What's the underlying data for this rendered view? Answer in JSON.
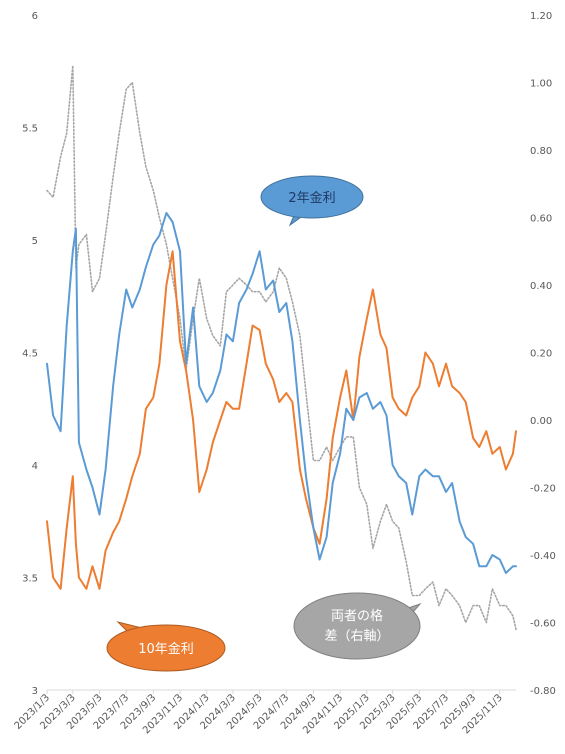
{
  "chart_data": {
    "type": "line",
    "title": "",
    "xlabel": "",
    "ylabel": "",
    "y_left": {
      "min": 3,
      "max": 6,
      "ticks": [
        "3",
        "3.5",
        "4",
        "4.5",
        "5",
        "5.5",
        "6"
      ]
    },
    "y_right": {
      "min": -0.8,
      "max": 1.2,
      "ticks": [
        "-0.80",
        "-0.60",
        "-0.40",
        "-0.20",
        "0.00",
        "0.20",
        "0.40",
        "0.60",
        "0.80",
        "1.00",
        "1.20"
      ]
    },
    "x_ticks": [
      "2023/1/3",
      "2023/3/3",
      "2023/5/3",
      "2023/7/3",
      "2023/9/3",
      "2023/11/3",
      "2024/1/3",
      "2024/3/3",
      "2024/5/3",
      "2024/7/3",
      "2024/9/3",
      "2024/11/3",
      "2025/1/3",
      "2025/3/3",
      "2025/5/3",
      "2025/7/3",
      "2025/9/3",
      "2025/11/3"
    ],
    "x_range": [
      "2023/1/3",
      "2025/12/10"
    ],
    "grid": false,
    "legend": "none",
    "annotations": [
      {
        "text": "2年金利",
        "color": "#5b9bd5",
        "text_color": "#1f3864"
      },
      {
        "text": "10年金利",
        "color": "#ed7d31",
        "text_color": "#ffffff"
      },
      {
        "text": "両者の格差（右軸）",
        "line1": "両者の格",
        "line2": "差（右軸）",
        "color": "#a6a6a6",
        "text_color": "#ffffff"
      }
    ],
    "series": [
      {
        "name": "2年金利",
        "axis": "left",
        "color": "#5b9bd5",
        "style": "solid",
        "x": [
          "2023/1/3",
          "2023/1/17",
          "2023/2/3",
          "2023/2/17",
          "2023/3/3",
          "2023/3/10",
          "2023/3/17",
          "2023/4/3",
          "2023/4/17",
          "2023/5/3",
          "2023/5/17",
          "2023/6/3",
          "2023/6/17",
          "2023/7/3",
          "2023/7/17",
          "2023/8/3",
          "2023/8/17",
          "2023/9/3",
          "2023/9/17",
          "2023/10/3",
          "2023/10/17",
          "2023/11/3",
          "2023/11/17",
          "2023/12/3",
          "2023/12/17",
          "2024/1/3",
          "2024/1/17",
          "2024/2/3",
          "2024/2/17",
          "2024/3/3",
          "2024/3/17",
          "2024/4/3",
          "2024/4/17",
          "2024/5/3",
          "2024/5/17",
          "2024/6/3",
          "2024/6/17",
          "2024/7/3",
          "2024/7/17",
          "2024/8/3",
          "2024/8/17",
          "2024/9/3",
          "2024/9/17",
          "2024/10/3",
          "2024/10/17",
          "2024/11/3",
          "2024/11/17",
          "2024/12/3",
          "2024/12/17",
          "2025/1/3",
          "2025/1/17",
          "2025/2/3",
          "2025/2/17",
          "2025/3/3",
          "2025/3/17",
          "2025/4/3",
          "2025/4/17",
          "2025/5/3",
          "2025/5/17",
          "2025/6/3",
          "2025/6/17",
          "2025/7/3",
          "2025/7/17",
          "2025/8/3",
          "2025/8/17",
          "2025/9/3",
          "2025/9/17",
          "2025/10/3",
          "2025/10/17",
          "2025/11/3",
          "2025/11/17",
          "2025/12/3",
          "2025/12/10"
        ],
        "values": [
          4.45,
          4.22,
          4.15,
          4.62,
          4.95,
          5.05,
          4.1,
          3.98,
          3.9,
          3.78,
          3.98,
          4.35,
          4.58,
          4.78,
          4.7,
          4.78,
          4.88,
          4.98,
          5.02,
          5.12,
          5.08,
          4.95,
          4.45,
          4.7,
          4.35,
          4.28,
          4.32,
          4.42,
          4.58,
          4.55,
          4.72,
          4.78,
          4.85,
          4.95,
          4.78,
          4.82,
          4.68,
          4.72,
          4.55,
          4.2,
          3.95,
          3.72,
          3.58,
          3.68,
          3.92,
          4.05,
          4.25,
          4.2,
          4.3,
          4.32,
          4.25,
          4.28,
          4.22,
          4.0,
          3.95,
          3.92,
          3.78,
          3.95,
          3.98,
          3.95,
          3.95,
          3.88,
          3.92,
          3.75,
          3.68,
          3.65,
          3.55,
          3.55,
          3.6,
          3.58,
          3.52,
          3.55,
          3.55
        ]
      },
      {
        "name": "10年金利",
        "axis": "left",
        "color": "#ed7d31",
        "style": "solid",
        "x": [
          "2023/1/3",
          "2023/1/17",
          "2023/2/3",
          "2023/2/17",
          "2023/3/3",
          "2023/3/10",
          "2023/3/17",
          "2023/4/3",
          "2023/4/17",
          "2023/5/3",
          "2023/5/17",
          "2023/6/3",
          "2023/6/17",
          "2023/7/3",
          "2023/7/17",
          "2023/8/3",
          "2023/8/17",
          "2023/9/3",
          "2023/9/17",
          "2023/10/3",
          "2023/10/17",
          "2023/11/3",
          "2023/11/17",
          "2023/12/3",
          "2023/12/17",
          "2024/1/3",
          "2024/1/17",
          "2024/2/3",
          "2024/2/17",
          "2024/3/3",
          "2024/3/17",
          "2024/4/3",
          "2024/4/17",
          "2024/5/3",
          "2024/5/17",
          "2024/6/3",
          "2024/6/17",
          "2024/7/3",
          "2024/7/17",
          "2024/8/3",
          "2024/8/17",
          "2024/9/3",
          "2024/9/17",
          "2024/10/3",
          "2024/10/17",
          "2024/11/3",
          "2024/11/17",
          "2024/12/3",
          "2024/12/17",
          "2025/1/3",
          "2025/1/17",
          "2025/2/3",
          "2025/2/17",
          "2025/3/3",
          "2025/3/17",
          "2025/4/3",
          "2025/4/17",
          "2025/5/3",
          "2025/5/17",
          "2025/6/3",
          "2025/6/17",
          "2025/7/3",
          "2025/7/17",
          "2025/8/3",
          "2025/8/17",
          "2025/9/3",
          "2025/9/17",
          "2025/10/3",
          "2025/10/17",
          "2025/11/3",
          "2025/11/17",
          "2025/12/3",
          "2025/12/10"
        ],
        "values": [
          3.75,
          3.5,
          3.45,
          3.72,
          3.95,
          3.65,
          3.5,
          3.45,
          3.55,
          3.45,
          3.62,
          3.7,
          3.75,
          3.85,
          3.95,
          4.05,
          4.25,
          4.3,
          4.45,
          4.8,
          4.95,
          4.55,
          4.42,
          4.2,
          3.88,
          3.98,
          4.1,
          4.2,
          4.28,
          4.25,
          4.25,
          4.45,
          4.62,
          4.6,
          4.45,
          4.38,
          4.28,
          4.32,
          4.28,
          3.98,
          3.85,
          3.72,
          3.65,
          3.85,
          4.12,
          4.3,
          4.42,
          4.2,
          4.48,
          4.65,
          4.78,
          4.58,
          4.52,
          4.3,
          4.25,
          4.22,
          4.3,
          4.35,
          4.5,
          4.45,
          4.35,
          4.45,
          4.35,
          4.32,
          4.28,
          4.12,
          4.08,
          4.15,
          4.05,
          4.08,
          3.98,
          4.05,
          4.15
        ]
      },
      {
        "name": "両者の格差（右軸）",
        "axis": "right",
        "color": "#a6a6a6",
        "style": "dotted",
        "x": [
          "2023/1/3",
          "2023/1/17",
          "2023/2/3",
          "2023/2/17",
          "2023/3/3",
          "2023/3/10",
          "2023/3/17",
          "2023/4/3",
          "2023/4/17",
          "2023/5/3",
          "2023/5/17",
          "2023/6/3",
          "2023/6/17",
          "2023/7/3",
          "2023/7/17",
          "2023/8/3",
          "2023/8/17",
          "2023/9/3",
          "2023/9/17",
          "2023/10/3",
          "2023/10/17",
          "2023/11/3",
          "2023/11/17",
          "2023/12/3",
          "2023/12/17",
          "2024/1/3",
          "2024/1/17",
          "2024/2/3",
          "2024/2/17",
          "2024/3/3",
          "2024/3/17",
          "2024/4/3",
          "2024/4/17",
          "2024/5/3",
          "2024/5/17",
          "2024/6/3",
          "2024/6/17",
          "2024/7/3",
          "2024/7/17",
          "2024/8/3",
          "2024/8/17",
          "2024/9/3",
          "2024/9/17",
          "2024/10/3",
          "2024/10/17",
          "2024/11/3",
          "2024/11/17",
          "2024/12/3",
          "2024/12/17",
          "2025/1/3",
          "2025/1/17",
          "2025/2/3",
          "2025/2/17",
          "2025/3/3",
          "2025/3/17",
          "2025/4/3",
          "2025/4/17",
          "2025/5/3",
          "2025/5/17",
          "2025/6/3",
          "2025/6/17",
          "2025/7/3",
          "2025/7/17",
          "2025/8/3",
          "2025/8/17",
          "2025/9/3",
          "2025/9/17",
          "2025/10/3",
          "2025/10/17",
          "2025/11/3",
          "2025/11/17",
          "2025/12/3",
          "2025/12/10"
        ],
        "values": [
          0.68,
          0.66,
          0.78,
          0.85,
          1.05,
          0.45,
          0.52,
          0.55,
          0.38,
          0.42,
          0.55,
          0.72,
          0.85,
          0.98,
          1.0,
          0.85,
          0.75,
          0.68,
          0.6,
          0.52,
          0.42,
          0.3,
          0.15,
          0.3,
          0.42,
          0.3,
          0.25,
          0.22,
          0.38,
          0.4,
          0.42,
          0.4,
          0.38,
          0.38,
          0.35,
          0.38,
          0.45,
          0.42,
          0.35,
          0.25,
          0.08,
          -0.12,
          -0.12,
          -0.08,
          -0.12,
          -0.08,
          -0.05,
          -0.05,
          -0.2,
          -0.25,
          -0.38,
          -0.3,
          -0.25,
          -0.3,
          -0.32,
          -0.42,
          -0.52,
          -0.52,
          -0.5,
          -0.48,
          -0.55,
          -0.5,
          -0.52,
          -0.55,
          -0.6,
          -0.55,
          -0.55,
          -0.6,
          -0.5,
          -0.55,
          -0.55,
          -0.58,
          -0.62
        ]
      }
    ]
  }
}
